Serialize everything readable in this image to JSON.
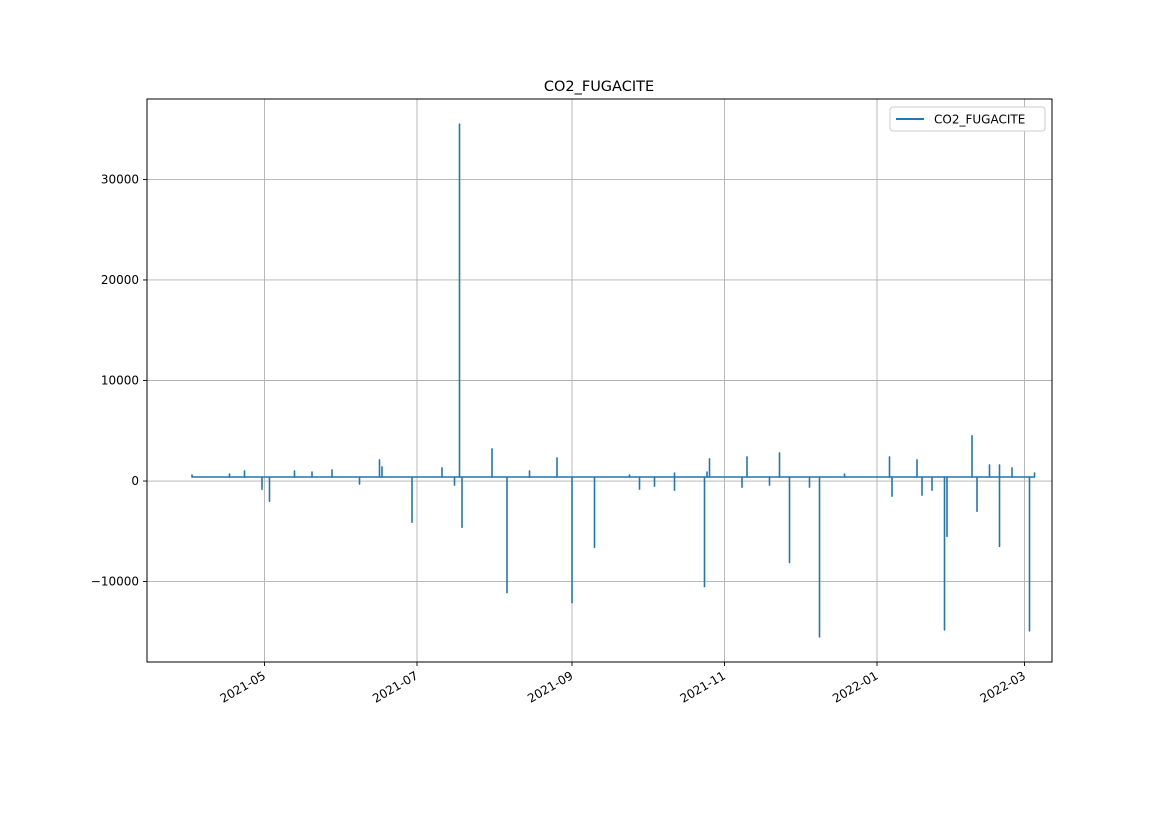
{
  "chart_data": {
    "type": "line",
    "title": "CO2_FUGACITE",
    "xlabel": "",
    "ylabel": "",
    "x_axis": "date",
    "xlim": [
      "2021-03-15",
      "2022-03-12"
    ],
    "ylim": [
      -18000,
      38000
    ],
    "x_ticks": [
      "2021-05-01",
      "2021-07-01",
      "2021-09-01",
      "2021-11-01",
      "2022-01-01",
      "2022-03-01"
    ],
    "x_tick_labels": [
      "2021-05",
      "2021-07",
      "2021-09",
      "2021-11",
      "2022-01",
      "2022-03"
    ],
    "y_ticks": [
      -10000,
      0,
      10000,
      20000,
      30000
    ],
    "y_tick_labels": [
      "−10000",
      "0",
      "10000",
      "20000",
      "30000"
    ],
    "grid": true,
    "legend_position": "upper right",
    "baseline": 400,
    "series": [
      {
        "name": "CO2_FUGACITE",
        "color": "#1f77b4",
        "spikes": [
          [
            "2021-04-02",
            600
          ],
          [
            "2021-04-17",
            700
          ],
          [
            "2021-04-23",
            1000
          ],
          [
            "2021-04-30",
            -800
          ],
          [
            "2021-05-03",
            -2000
          ],
          [
            "2021-05-13",
            1000
          ],
          [
            "2021-05-20",
            900
          ],
          [
            "2021-05-28",
            1100
          ],
          [
            "2021-06-08",
            -300
          ],
          [
            "2021-06-16",
            2100
          ],
          [
            "2021-06-17",
            1400
          ],
          [
            "2021-06-29",
            -4100
          ],
          [
            "2021-07-11",
            1300
          ],
          [
            "2021-07-16",
            -400
          ],
          [
            "2021-07-18",
            35500
          ],
          [
            "2021-07-19",
            -4600
          ],
          [
            "2021-07-31",
            3200
          ],
          [
            "2021-08-06",
            -11100
          ],
          [
            "2021-08-15",
            1000
          ],
          [
            "2021-08-26",
            2300
          ],
          [
            "2021-09-01",
            -12100
          ],
          [
            "2021-09-10",
            -6600
          ],
          [
            "2021-09-24",
            600
          ],
          [
            "2021-09-28",
            -800
          ],
          [
            "2021-10-04",
            -500
          ],
          [
            "2021-10-12",
            800
          ],
          [
            "2021-10-12",
            -900
          ],
          [
            "2021-10-24",
            -10500
          ],
          [
            "2021-10-25",
            900
          ],
          [
            "2021-10-26",
            2200
          ],
          [
            "2021-11-08",
            -600
          ],
          [
            "2021-11-10",
            2400
          ],
          [
            "2021-11-19",
            -400
          ],
          [
            "2021-11-23",
            2800
          ],
          [
            "2021-11-27",
            -8100
          ],
          [
            "2021-12-05",
            -600
          ],
          [
            "2021-12-09",
            -15500
          ],
          [
            "2021-12-19",
            700
          ],
          [
            "2022-01-06",
            2400
          ],
          [
            "2022-01-07",
            -1500
          ],
          [
            "2022-01-17",
            2100
          ],
          [
            "2022-01-19",
            -1400
          ],
          [
            "2022-01-23",
            -900
          ],
          [
            "2022-01-28",
            -14800
          ],
          [
            "2022-01-29",
            -5500
          ],
          [
            "2022-02-08",
            4500
          ],
          [
            "2022-02-10",
            -3000
          ],
          [
            "2022-02-15",
            1600
          ],
          [
            "2022-02-19",
            -6500
          ],
          [
            "2022-02-19",
            1600
          ],
          [
            "2022-02-24",
            1300
          ],
          [
            "2022-03-03",
            -14900
          ],
          [
            "2022-03-05",
            800
          ]
        ]
      }
    ]
  }
}
